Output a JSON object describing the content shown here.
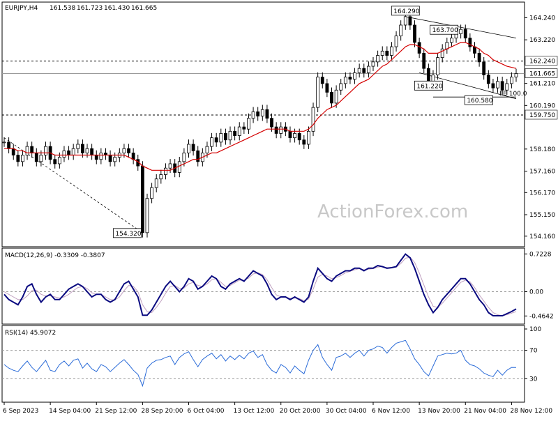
{
  "chart_data": {
    "type": "candlestick",
    "symbol_label": "EURJPY,H4",
    "ohlc": [
      "161.538",
      "161.723",
      "161.430",
      "161.665"
    ],
    "watermark": "ActionForex.com",
    "price_axis": {
      "ylim": [
        153.8,
        164.8
      ],
      "ticks": [
        "164.240",
        "163.220",
        "162.240",
        "161.210",
        "160.190",
        "159.750",
        "158.180",
        "157.160",
        "156.170",
        "155.150",
        "154.160"
      ],
      "tick_values": [
        164.24,
        163.22,
        161.21,
        160.19,
        158.18,
        157.16,
        156.17,
        155.15,
        154.16
      ],
      "tag_current": "161.665",
      "tag_upper": "162.240",
      "tag_lower": "159.750"
    },
    "x_axis": {
      "labels": [
        "6 Sep 2023",
        "14 Sep 04:00",
        "21 Sep 12:00",
        "28 Sep 20:00",
        "6 Oct 04:00",
        "13 Oct 12:00",
        "20 Oct 20:00",
        "30 Oct 04:00",
        "6 Nov 12:00",
        "13 Nov 20:00",
        "21 Nov 04:00",
        "28 Nov 12:00"
      ],
      "label_bar_index": [
        0,
        10,
        20,
        30,
        40,
        50,
        60,
        70,
        80,
        90,
        100,
        110
      ]
    },
    "price_series": [
      158.5,
      158.2,
      157.9,
      157.6,
      157.9,
      158.3,
      158.0,
      157.6,
      157.9,
      158.3,
      157.7,
      157.5,
      157.8,
      158.1,
      157.9,
      158.2,
      158.4,
      158.0,
      158.2,
      157.9,
      157.7,
      158.0,
      157.9,
      157.6,
      157.8,
      158.0,
      158.2,
      158.0,
      157.7,
      157.4,
      154.32,
      155.9,
      156.4,
      156.8,
      157.0,
      157.3,
      157.5,
      157.1,
      157.6,
      158.0,
      158.4,
      158.1,
      157.6,
      158.0,
      158.3,
      158.7,
      158.5,
      158.9,
      158.6,
      159.0,
      158.8,
      159.2,
      159.1,
      159.6,
      159.9,
      159.7,
      160.0,
      159.6,
      159.2,
      158.9,
      159.2,
      159.0,
      158.7,
      158.9,
      158.6,
      158.4,
      159.0,
      160.1,
      161.5,
      161.2,
      160.8,
      160.3,
      160.9,
      161.2,
      161.5,
      161.4,
      161.7,
      161.9,
      161.7,
      162.0,
      162.2,
      162.5,
      162.7,
      162.5,
      162.9,
      163.4,
      163.9,
      164.29,
      163.9,
      163.1,
      162.6,
      161.9,
      161.22,
      161.6,
      162.4,
      162.8,
      163.1,
      163.3,
      163.5,
      163.7,
      163.3,
      162.9,
      162.6,
      162.2,
      161.6,
      161.2,
      161.0,
      161.3,
      160.9,
      161.2,
      161.5,
      161.665
    ],
    "sma": [
      158.2,
      158.2,
      158.2,
      158.1,
      158.1,
      158.0,
      158.0,
      158.0,
      158.0,
      158.0,
      158.0,
      157.9,
      157.9,
      157.9,
      157.9,
      157.9,
      157.9,
      157.9,
      157.9,
      157.9,
      157.9,
      157.9,
      157.9,
      157.9,
      157.9,
      157.9,
      157.9,
      157.8,
      157.7,
      157.6,
      157.4,
      157.3,
      157.2,
      157.2,
      157.2,
      157.2,
      157.2,
      157.3,
      157.4,
      157.5,
      157.6,
      157.7,
      157.7,
      157.8,
      157.9,
      158.0,
      158.0,
      158.1,
      158.2,
      158.3,
      158.4,
      158.5,
      158.6,
      158.7,
      158.8,
      158.9,
      159.0,
      159.1,
      159.1,
      159.1,
      159.1,
      159.1,
      159.0,
      159.0,
      159.0,
      159.0,
      159.1,
      159.3,
      159.6,
      159.8,
      160.0,
      160.1,
      160.2,
      160.4,
      160.6,
      160.8,
      161.0,
      161.2,
      161.3,
      161.4,
      161.6,
      161.8,
      162.0,
      162.1,
      162.3,
      162.5,
      162.7,
      162.9,
      163.0,
      163.0,
      162.9,
      162.8,
      162.6,
      162.6,
      162.6,
      162.7,
      162.8,
      162.9,
      163.0,
      163.1,
      163.1,
      163.0,
      162.9,
      162.8,
      162.6,
      162.5,
      162.3,
      162.2,
      162.1,
      162.0,
      161.95,
      161.9
    ],
    "annotations": [
      {
        "text": "164.290",
        "bar": 87,
        "price": 164.29
      },
      {
        "text": "163.700",
        "bar": 99,
        "price": 163.7
      },
      {
        "text": "161.220",
        "bar": 92,
        "price": 161.22
      },
      {
        "text": "160.580",
        "bar": 105,
        "price": 160.58
      },
      {
        "text": "154.320",
        "bar": 30,
        "price": 154.32
      },
      {
        "text": "FE 100.0",
        "bar": 111,
        "price": 160.72
      }
    ],
    "horizontal_levels": [
      162.24,
      159.75
    ],
    "current_price": 161.665,
    "trendlines": [
      {
        "from": {
          "bar": 0,
          "price": 158.7
        },
        "to": {
          "bar": 30,
          "price": 154.32
        },
        "style": "dashed"
      },
      {
        "from": {
          "bar": 87,
          "price": 164.29
        },
        "to": {
          "bar": 111,
          "price": 163.3
        },
        "style": "solid"
      },
      {
        "from": {
          "bar": 90,
          "price": 161.7
        },
        "to": {
          "bar": 111,
          "price": 160.5
        },
        "style": "solid"
      },
      {
        "from": {
          "bar": 93,
          "price": 160.58
        },
        "to": {
          "bar": 111,
          "price": 160.58
        },
        "style": "solid"
      }
    ],
    "macd": {
      "label": "MACD(12,26,9) -0.3309 -0.3807",
      "ylim": [
        -0.58,
        0.78
      ],
      "ticks": [
        "0.7228",
        "0.00",
        "-0.4642"
      ],
      "tick_values": [
        0.7228,
        0.0,
        -0.4642
      ],
      "main": [
        -0.05,
        -0.15,
        -0.2,
        -0.25,
        -0.1,
        0.1,
        0.15,
        -0.05,
        -0.2,
        -0.1,
        -0.05,
        -0.15,
        -0.15,
        -0.05,
        0.05,
        0.1,
        0.15,
        0.1,
        0.0,
        -0.1,
        -0.05,
        -0.05,
        -0.15,
        -0.2,
        -0.15,
        0.0,
        0.15,
        0.2,
        0.05,
        -0.1,
        -0.45,
        -0.45,
        -0.35,
        -0.2,
        -0.05,
        0.1,
        0.2,
        0.1,
        0.0,
        0.1,
        0.25,
        0.2,
        0.05,
        0.1,
        0.2,
        0.3,
        0.25,
        0.1,
        0.05,
        0.15,
        0.2,
        0.25,
        0.2,
        0.3,
        0.4,
        0.35,
        0.3,
        0.15,
        -0.05,
        -0.15,
        -0.1,
        -0.1,
        -0.15,
        -0.1,
        -0.15,
        -0.2,
        -0.1,
        0.2,
        0.45,
        0.35,
        0.25,
        0.2,
        0.3,
        0.35,
        0.4,
        0.4,
        0.45,
        0.45,
        0.4,
        0.45,
        0.45,
        0.5,
        0.48,
        0.45,
        0.46,
        0.48,
        0.6,
        0.72,
        0.65,
        0.45,
        0.2,
        -0.05,
        -0.25,
        -0.4,
        -0.3,
        -0.15,
        -0.05,
        0.05,
        0.15,
        0.25,
        0.25,
        0.15,
        0.0,
        -0.15,
        -0.25,
        -0.4,
        -0.46,
        -0.46,
        -0.46,
        -0.42,
        -0.38,
        -0.33
      ],
      "signal": [
        0.0,
        -0.05,
        -0.1,
        -0.15,
        -0.15,
        -0.08,
        0.02,
        0.03,
        -0.05,
        -0.08,
        -0.08,
        -0.1,
        -0.12,
        -0.1,
        -0.05,
        0.02,
        0.08,
        0.1,
        0.06,
        -0.02,
        -0.05,
        -0.05,
        -0.1,
        -0.15,
        -0.16,
        -0.1,
        0.02,
        0.12,
        0.1,
        0.0,
        -0.25,
        -0.38,
        -0.4,
        -0.3,
        -0.18,
        -0.03,
        0.1,
        0.12,
        0.06,
        0.07,
        0.15,
        0.18,
        0.12,
        0.1,
        0.15,
        0.23,
        0.25,
        0.18,
        0.1,
        0.12,
        0.17,
        0.22,
        0.22,
        0.26,
        0.34,
        0.36,
        0.33,
        0.23,
        0.08,
        -0.06,
        -0.1,
        -0.1,
        -0.13,
        -0.12,
        -0.13,
        -0.17,
        -0.14,
        0.05,
        0.28,
        0.33,
        0.3,
        0.25,
        0.27,
        0.31,
        0.36,
        0.39,
        0.42,
        0.44,
        0.42,
        0.43,
        0.44,
        0.47,
        0.48,
        0.46,
        0.46,
        0.47,
        0.54,
        0.64,
        0.66,
        0.56,
        0.36,
        0.13,
        -0.1,
        -0.28,
        -0.3,
        -0.22,
        -0.12,
        -0.02,
        0.08,
        0.18,
        0.22,
        0.19,
        0.08,
        -0.06,
        -0.18,
        -0.3,
        -0.4,
        -0.44,
        -0.46,
        -0.44,
        -0.41,
        -0.38
      ]
    },
    "rsi": {
      "label": "RSI(14) 45.9072",
      "ylim": [
        0,
        100
      ],
      "ticks": [
        "100",
        "70",
        "30"
      ],
      "tick_values": [
        100,
        70,
        30
      ],
      "values": [
        50,
        45,
        42,
        40,
        48,
        55,
        46,
        40,
        48,
        56,
        42,
        40,
        50,
        55,
        48,
        56,
        58,
        45,
        52,
        44,
        40,
        50,
        47,
        40,
        46,
        52,
        57,
        50,
        42,
        36,
        20,
        45,
        52,
        56,
        57,
        60,
        62,
        50,
        60,
        65,
        68,
        57,
        47,
        57,
        62,
        66,
        58,
        64,
        55,
        62,
        57,
        63,
        58,
        66,
        69,
        60,
        64,
        50,
        42,
        38,
        50,
        46,
        38,
        48,
        42,
        37,
        56,
        70,
        78,
        60,
        50,
        42,
        60,
        62,
        66,
        60,
        66,
        70,
        62,
        70,
        72,
        76,
        74,
        66,
        74,
        80,
        82,
        84,
        72,
        58,
        50,
        40,
        34,
        48,
        62,
        64,
        66,
        65,
        66,
        70,
        56,
        50,
        48,
        44,
        38,
        35,
        33,
        42,
        35,
        42,
        46,
        45.9
      ]
    }
  }
}
